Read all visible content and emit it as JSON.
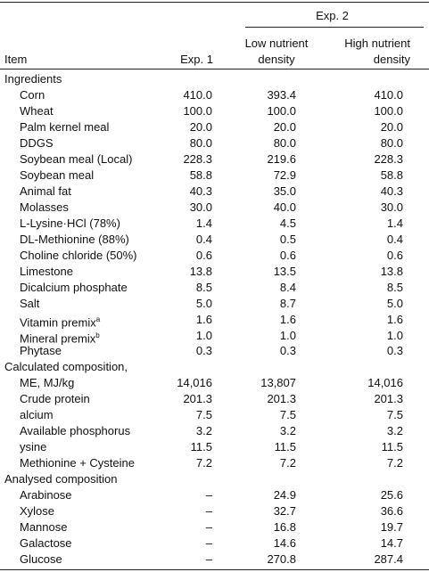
{
  "header": {
    "group": "Exp. 2",
    "columns": [
      "Item",
      "Exp. 1",
      "Low nutrient density",
      "High nutrient density"
    ]
  },
  "sections": [
    {
      "title": "Ingredients",
      "rows": [
        {
          "item": "Corn",
          "values": [
            "410.0",
            "393.4",
            "410.0"
          ]
        },
        {
          "item": "Wheat",
          "values": [
            "100.0",
            "100.0",
            "100.0"
          ]
        },
        {
          "item": "Palm kernel meal",
          "values": [
            "20.0",
            "20.0",
            "20.0"
          ]
        },
        {
          "item": "DDGS",
          "values": [
            "80.0",
            "80.0",
            "80.0"
          ]
        },
        {
          "item": "Soybean meal (Local)",
          "values": [
            "228.3",
            "219.6",
            "228.3"
          ]
        },
        {
          "item": "Soybean meal",
          "values": [
            "58.8",
            "72.9",
            "58.8"
          ]
        },
        {
          "item": "Animal fat",
          "values": [
            "40.3",
            "35.0",
            "40.3"
          ]
        },
        {
          "item": "Molasses",
          "values": [
            "30.0",
            "40.0",
            "30.0"
          ]
        },
        {
          "item": "L-Lysine·HCl (78%)",
          "values": [
            "1.4",
            "4.5",
            "1.4"
          ]
        },
        {
          "item": "DL-Methionine (88%)",
          "values": [
            "0.4",
            "0.5",
            "0.4"
          ]
        },
        {
          "item": "Choline chloride (50%)",
          "values": [
            "0.6",
            "0.6",
            "0.6"
          ]
        },
        {
          "item": "Limestone",
          "values": [
            "13.8",
            "13.5",
            "13.8"
          ]
        },
        {
          "item": "Dicalcium phosphate",
          "values": [
            "8.5",
            "8.4",
            "8.5"
          ]
        },
        {
          "item": "Salt",
          "values": [
            "5.0",
            "8.7",
            "5.0"
          ]
        },
        {
          "item": "Vitamin premix",
          "sup": "a",
          "values": [
            "1.6",
            "1.6",
            "1.6"
          ]
        },
        {
          "item": "Mineral premix",
          "sup": "b",
          "values": [
            "1.0",
            "1.0",
            "1.0"
          ]
        },
        {
          "item": "Phytase",
          "values": [
            "0.3",
            "0.3",
            "0.3"
          ]
        }
      ]
    },
    {
      "title": "Calculated composition,",
      "rows": [
        {
          "item": "ME, MJ/kg",
          "values": [
            "14,016",
            "13,807",
            "14,016"
          ]
        },
        {
          "item": "Crude protein",
          "values": [
            "201.3",
            "201.3",
            "201.3"
          ]
        },
        {
          "item": "alcium",
          "values": [
            "7.5",
            "7.5",
            "7.5"
          ]
        },
        {
          "item": "Available phosphorus",
          "values": [
            "3.2",
            "3.2",
            "3.2"
          ]
        },
        {
          "item": "ysine",
          "values": [
            "11.5",
            "11.5",
            "11.5"
          ]
        },
        {
          "item": "Methionine + Cysteine",
          "values": [
            "7.2",
            "7.2",
            "7.2"
          ]
        }
      ]
    },
    {
      "title": "Analysed composition",
      "rows": [
        {
          "item": "Arabinose",
          "values": [
            "–",
            "24.9",
            "25.6"
          ]
        },
        {
          "item": "Xylose",
          "values": [
            "–",
            "32.7",
            "36.6"
          ]
        },
        {
          "item": "Mannose",
          "values": [
            "–",
            "16.8",
            "19.7"
          ]
        },
        {
          "item": "Galactose",
          "values": [
            "–",
            "14.6",
            "14.7"
          ]
        },
        {
          "item": "Glucose",
          "values": [
            "–",
            "270.8",
            "287.4"
          ]
        }
      ]
    }
  ]
}
